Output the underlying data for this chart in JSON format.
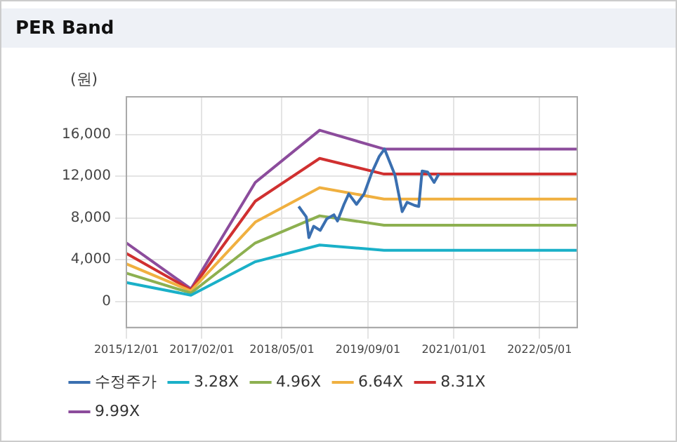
{
  "chart_data": {
    "type": "line",
    "title": "PER Band",
    "ylabel": "(원)",
    "xlim": [
      "2015-12-01",
      "2022-12-01"
    ],
    "xticks": [
      {
        "value": "2015-12-01",
        "label": "2015/12/01"
      },
      {
        "value": "2017-02-01",
        "label": "2017/02/01"
      },
      {
        "value": "2018-05-01",
        "label": "2018/05/01"
      },
      {
        "value": "2019-09-01",
        "label": "2019/09/01"
      },
      {
        "value": "2021-01-01",
        "label": "2021/01/01"
      },
      {
        "value": "2022-05-01",
        "label": "2022/05/01"
      }
    ],
    "ylim": [
      -2500,
      19600
    ],
    "yticks": [
      {
        "value": 0,
        "label": "0"
      },
      {
        "value": 4000,
        "label": "4,000"
      },
      {
        "value": 8000,
        "label": "8,000"
      },
      {
        "value": 12000,
        "label": "12,000"
      },
      {
        "value": 16000,
        "label": "16,000"
      }
    ],
    "grid": true,
    "legend": "bottom",
    "marker": "none",
    "line_style": "solid",
    "series": [
      {
        "name": "수정주가",
        "color": "#3a6fb0",
        "x": [
          "2018-08-04",
          "2018-09-16",
          "2018-10-01",
          "2018-10-28",
          "2018-12-04",
          "2019-01-10",
          "2019-02-20",
          "2019-03-12",
          "2019-04-18",
          "2019-05-15",
          "2019-06-28",
          "2019-08-10",
          "2019-09-22",
          "2019-11-04",
          "2019-12-04",
          "2020-02-01",
          "2020-03-13",
          "2020-04-10",
          "2020-05-22",
          "2020-06-15",
          "2020-07-04",
          "2020-08-04",
          "2020-09-10",
          "2020-10-07"
        ],
        "values": [
          9100,
          8100,
          6100,
          7200,
          6800,
          7900,
          8300,
          7700,
          9300,
          10300,
          9300,
          10300,
          12300,
          13900,
          14600,
          12100,
          8600,
          9500,
          9200,
          9100,
          12500,
          12400,
          11400,
          12200
        ]
      },
      {
        "name": "3.28X",
        "color": "#1ab0c8",
        "x": [
          "2015-12-01",
          "2016-12-01",
          "2017-12-01",
          "2018-12-01",
          "2019-12-01",
          "2022-12-01"
        ],
        "values": [
          1800,
          600,
          3800,
          5400,
          4900,
          4900
        ]
      },
      {
        "name": "4.96X",
        "color": "#8db050",
        "x": [
          "2015-12-01",
          "2016-12-01",
          "2017-12-01",
          "2018-12-01",
          "2019-12-01",
          "2022-12-01"
        ],
        "values": [
          2700,
          800,
          5600,
          8200,
          7300,
          7300
        ]
      },
      {
        "name": "6.64X",
        "color": "#f0b040",
        "x": [
          "2015-12-01",
          "2016-12-01",
          "2017-12-01",
          "2018-12-01",
          "2019-12-01",
          "2022-12-01"
        ],
        "values": [
          3600,
          1000,
          7600,
          10900,
          9800,
          9800
        ]
      },
      {
        "name": "8.31X",
        "color": "#d03030",
        "x": [
          "2015-12-01",
          "2016-12-01",
          "2017-12-01",
          "2018-12-01",
          "2019-12-01",
          "2022-12-01"
        ],
        "values": [
          4600,
          1100,
          9600,
          13700,
          12200,
          12200
        ]
      },
      {
        "name": "9.99X",
        "color": "#8c4c9c",
        "x": [
          "2015-12-01",
          "2016-12-01",
          "2017-12-01",
          "2018-12-01",
          "2019-12-01",
          "2022-12-01"
        ],
        "values": [
          5600,
          1200,
          11400,
          16400,
          14600,
          14600
        ]
      }
    ]
  }
}
